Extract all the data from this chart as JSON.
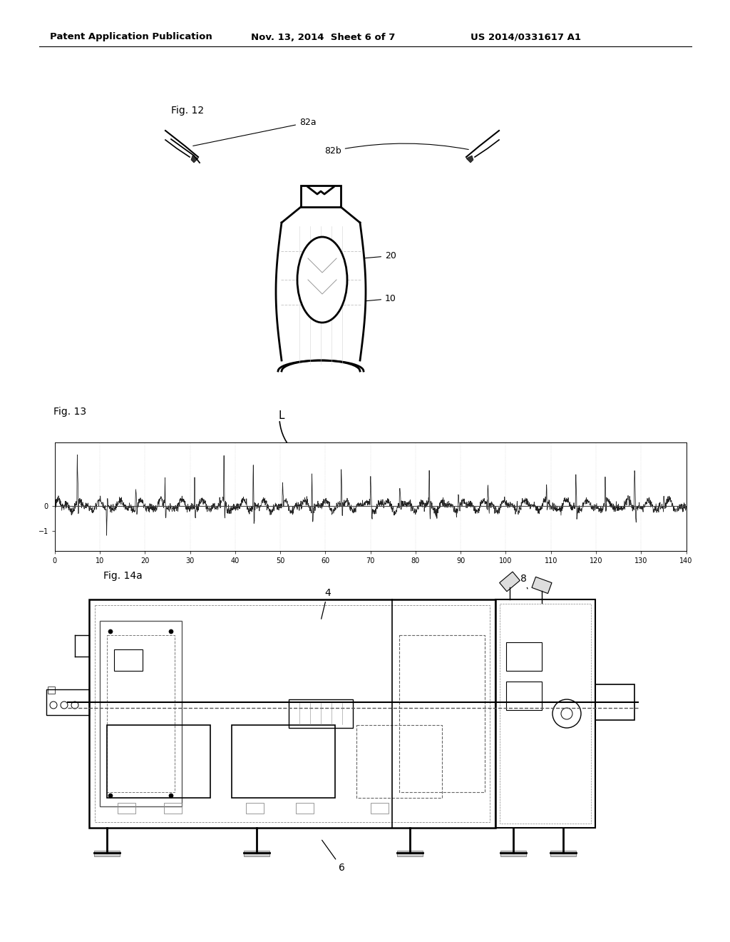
{
  "background_color": "#ffffff",
  "header_text": "Patent Application Publication",
  "header_date": "Nov. 13, 2014  Sheet 6 of 7",
  "header_patent": "US 2014/0331617 A1",
  "line_color": "#000000",
  "fig12_label": "Fig. 12",
  "fig13_label": "Fig. 13",
  "fig14_label": "Fig. 14a",
  "ref_82a": "82a",
  "ref_82b": "82b",
  "ref_20": "20",
  "ref_10": "10",
  "ref_L": "L",
  "ref_4": "4",
  "ref_6": "6",
  "ref_8": "8"
}
